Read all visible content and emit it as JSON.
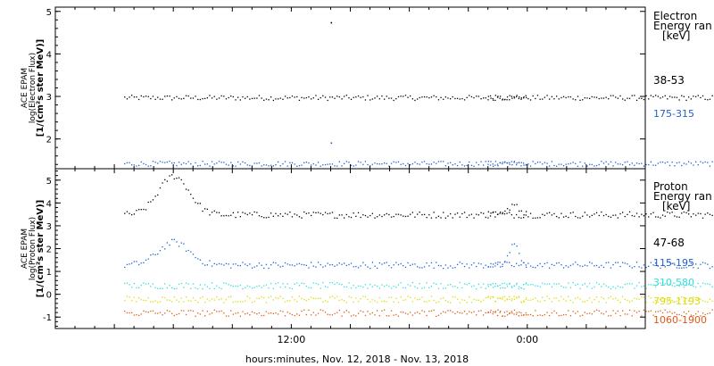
{
  "chart_data": [
    {
      "type": "scatter",
      "panel": "electron",
      "ylabel_lines": [
        "ACE EPAM",
        "log(Electron Flux)",
        "[1/(cm²s ster MeV)]"
      ],
      "ylim": [
        1.3,
        5.1
      ],
      "yticks": [
        2,
        3,
        4,
        5
      ],
      "legend": {
        "title_lines": [
          "Electron",
          "Energy ran",
          "[keV]"
        ],
        "placement": "right"
      },
      "series": [
        {
          "name": "38-53",
          "color": "#000000",
          "level": 2.98,
          "spikes": [
            {
              "x": -10.0,
              "y": 4.75
            }
          ]
        },
        {
          "name": "175-315",
          "color": "#1f5fd0",
          "level": 1.43,
          "spikes": [
            {
              "x": -10.0,
              "y": 1.92
            }
          ]
        }
      ]
    },
    {
      "type": "scatter",
      "panel": "proton",
      "ylabel_lines": [
        "ACE EPAM",
        "log(Proton Flux)",
        "[1/(cm²s ster MeV)]"
      ],
      "ylim": [
        -1.5,
        5.5
      ],
      "yticks": [
        -1,
        0,
        1,
        2,
        3,
        4,
        5
      ],
      "legend": {
        "title_lines": [
          "Proton",
          "Energy ran",
          "[keV]"
        ],
        "placement": "right"
      },
      "series": [
        {
          "name": "47-68",
          "color": "#000000",
          "level": 3.5,
          "event": 1.7,
          "late_event": 0.5
        },
        {
          "name": "115-195",
          "color": "#1f5fd0",
          "level": 1.3,
          "event": 1.0,
          "late_event": 0.9
        },
        {
          "name": "310-580",
          "color": "#33dddd",
          "level": 0.4,
          "event": 0.0,
          "late_event": 0.0
        },
        {
          "name": "795-1193",
          "color": "#dddd00",
          "level": -0.2,
          "event": 0.0,
          "late_event": 0.0
        },
        {
          "name": "1060-1900",
          "color": "#e05a14",
          "level": -0.8,
          "event": 0.0,
          "late_event": 0.0
        }
      ]
    }
  ],
  "time_axis": {
    "xlim_hours": [
      -24,
      6
    ],
    "data_segments": [
      [
        -20.5,
        14.0
      ],
      [
        -2.0,
        0.0
      ]
    ],
    "tick_labels": [
      {
        "x": -12,
        "label": "12:00"
      },
      {
        "x": 0,
        "label": "0:00"
      }
    ],
    "xlabel": "hours:minutes, Nov. 12, 2018 - Nov. 13, 2018"
  }
}
